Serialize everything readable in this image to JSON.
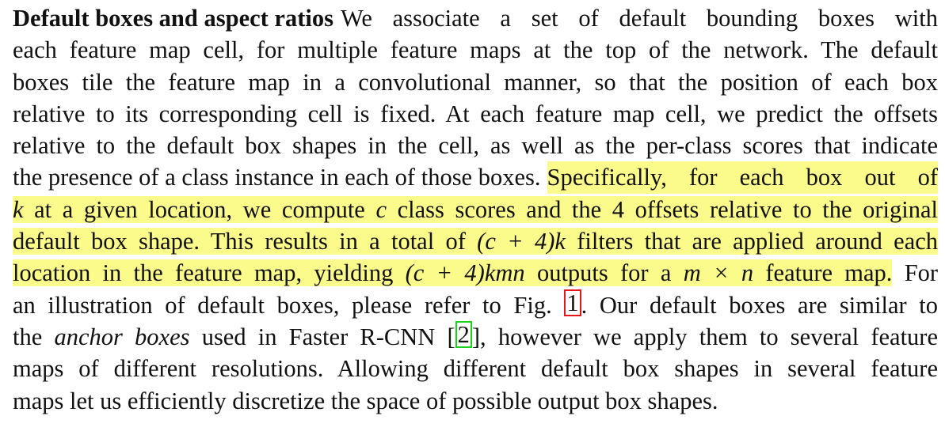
{
  "paragraph": {
    "heading": "Default boxes and aspect ratios",
    "line1_rest": "We associate a set of default bounding boxes with",
    "line2": "each feature map cell, for multiple feature maps at the top of the network. The default",
    "line3": "boxes tile the feature map in a convolutional manner, so that the position of each box",
    "line4": "relative to its corresponding cell is fixed. At each feature map cell, we predict the offsets",
    "line5": "relative to the default box shapes in the cell, as well as the per-class scores that indicate",
    "line6_plain": "the presence of a class instance in each of those boxes.",
    "line6_hl": "Specifically, for each box out of",
    "line7_k": "k",
    "line7_a": "at a given location, we compute",
    "line7_c": "c",
    "line7_b": "class scores and the",
    "line7_4": "4",
    "line7_d": "offsets relative to the original",
    "line8_a": "default box shape. This results in a total of",
    "line8_math": "(c + 4)k",
    "line8_b": "filters that are applied around each",
    "line9_a": "location in the feature map, yielding",
    "line9_math": "(c + 4)kmn",
    "line9_b": "outputs for a",
    "line9_math2": "m × n",
    "line9_c": "feature map.",
    "line9_plain": "For",
    "line10_a": "an illustration of default boxes, please refer to Fig.",
    "line10_ref": "1",
    "line10_b": ". Our default boxes are similar to",
    "line11_a": "the",
    "line11_ital": "anchor boxes",
    "line11_b": "used in Faster R-CNN [",
    "line11_ref": "2",
    "line11_c": "], however we apply them to several feature",
    "line12": "maps of different resolutions. Allowing different default box shapes in several feature",
    "line13": "maps let us efficiently discretize the space of possible output box shapes."
  }
}
